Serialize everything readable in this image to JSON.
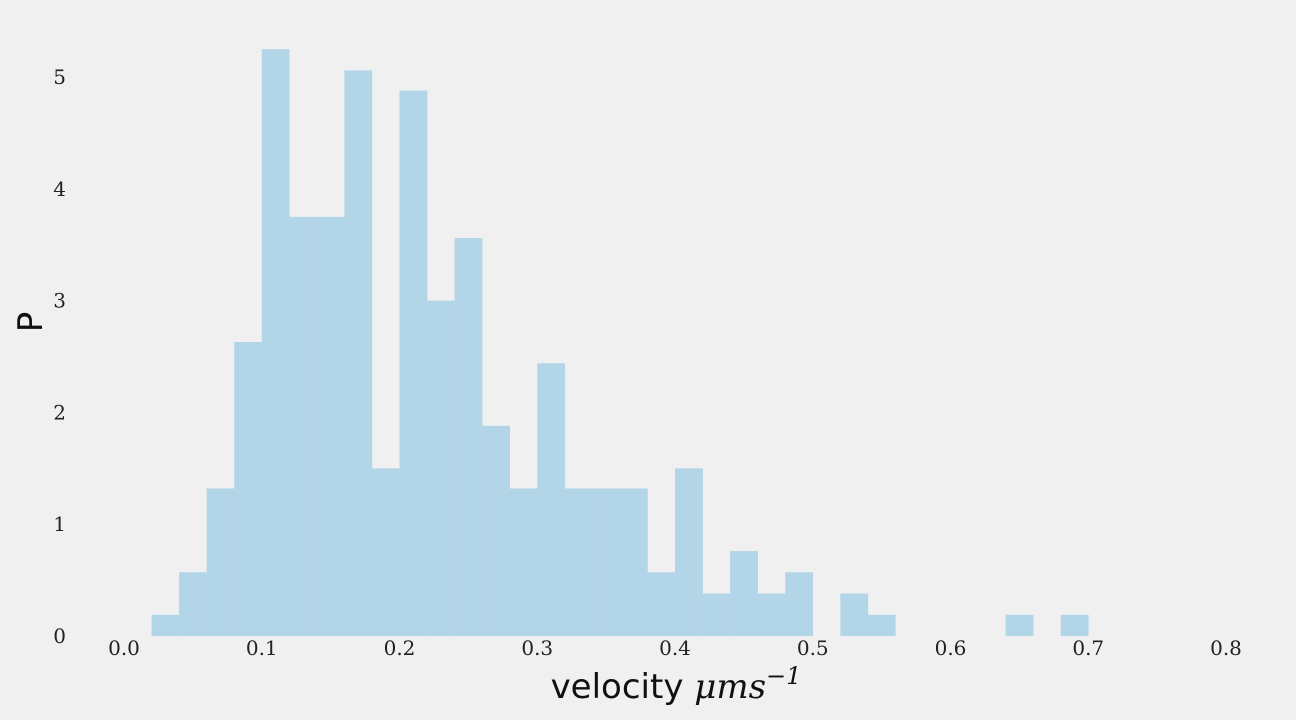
{
  "chart_data": {
    "type": "bar",
    "histogram": true,
    "bar_color": "#b3d5e8",
    "background": "#f0f0f0",
    "grid": false,
    "xlabel_text": "velocity ",
    "xlabel_math": "μms",
    "xlabel_exponent": "−1",
    "ylabel": "P",
    "xlim": [
      0.0,
      0.8
    ],
    "ylim": [
      0,
      5.35
    ],
    "xticks": [
      "0.0",
      "0.1",
      "0.2",
      "0.3",
      "0.4",
      "0.5",
      "0.6",
      "0.7",
      "0.8"
    ],
    "yticks": [
      "0",
      "1",
      "2",
      "3",
      "4",
      "5"
    ],
    "bin_width": 0.02,
    "bins": [
      {
        "x0": 0.02,
        "value": 0.19
      },
      {
        "x0": 0.04,
        "value": 0.57
      },
      {
        "x0": 0.06,
        "value": 1.32
      },
      {
        "x0": 0.08,
        "value": 2.63
      },
      {
        "x0": 0.1,
        "value": 5.25
      },
      {
        "x0": 0.12,
        "value": 3.75
      },
      {
        "x0": 0.14,
        "value": 3.75
      },
      {
        "x0": 0.16,
        "value": 5.06
      },
      {
        "x0": 0.18,
        "value": 1.5
      },
      {
        "x0": 0.2,
        "value": 4.88
      },
      {
        "x0": 0.22,
        "value": 3.0
      },
      {
        "x0": 0.24,
        "value": 3.56
      },
      {
        "x0": 0.26,
        "value": 1.88
      },
      {
        "x0": 0.28,
        "value": 1.32
      },
      {
        "x0": 0.3,
        "value": 2.44
      },
      {
        "x0": 0.32,
        "value": 1.32
      },
      {
        "x0": 0.34,
        "value": 1.32
      },
      {
        "x0": 0.36,
        "value": 1.32
      },
      {
        "x0": 0.38,
        "value": 0.57
      },
      {
        "x0": 0.4,
        "value": 1.5
      },
      {
        "x0": 0.42,
        "value": 0.38
      },
      {
        "x0": 0.44,
        "value": 0.76
      },
      {
        "x0": 0.46,
        "value": 0.38
      },
      {
        "x0": 0.48,
        "value": 0.57
      },
      {
        "x0": 0.52,
        "value": 0.38
      },
      {
        "x0": 0.54,
        "value": 0.19
      },
      {
        "x0": 0.64,
        "value": 0.19
      },
      {
        "x0": 0.68,
        "value": 0.19
      }
    ]
  }
}
